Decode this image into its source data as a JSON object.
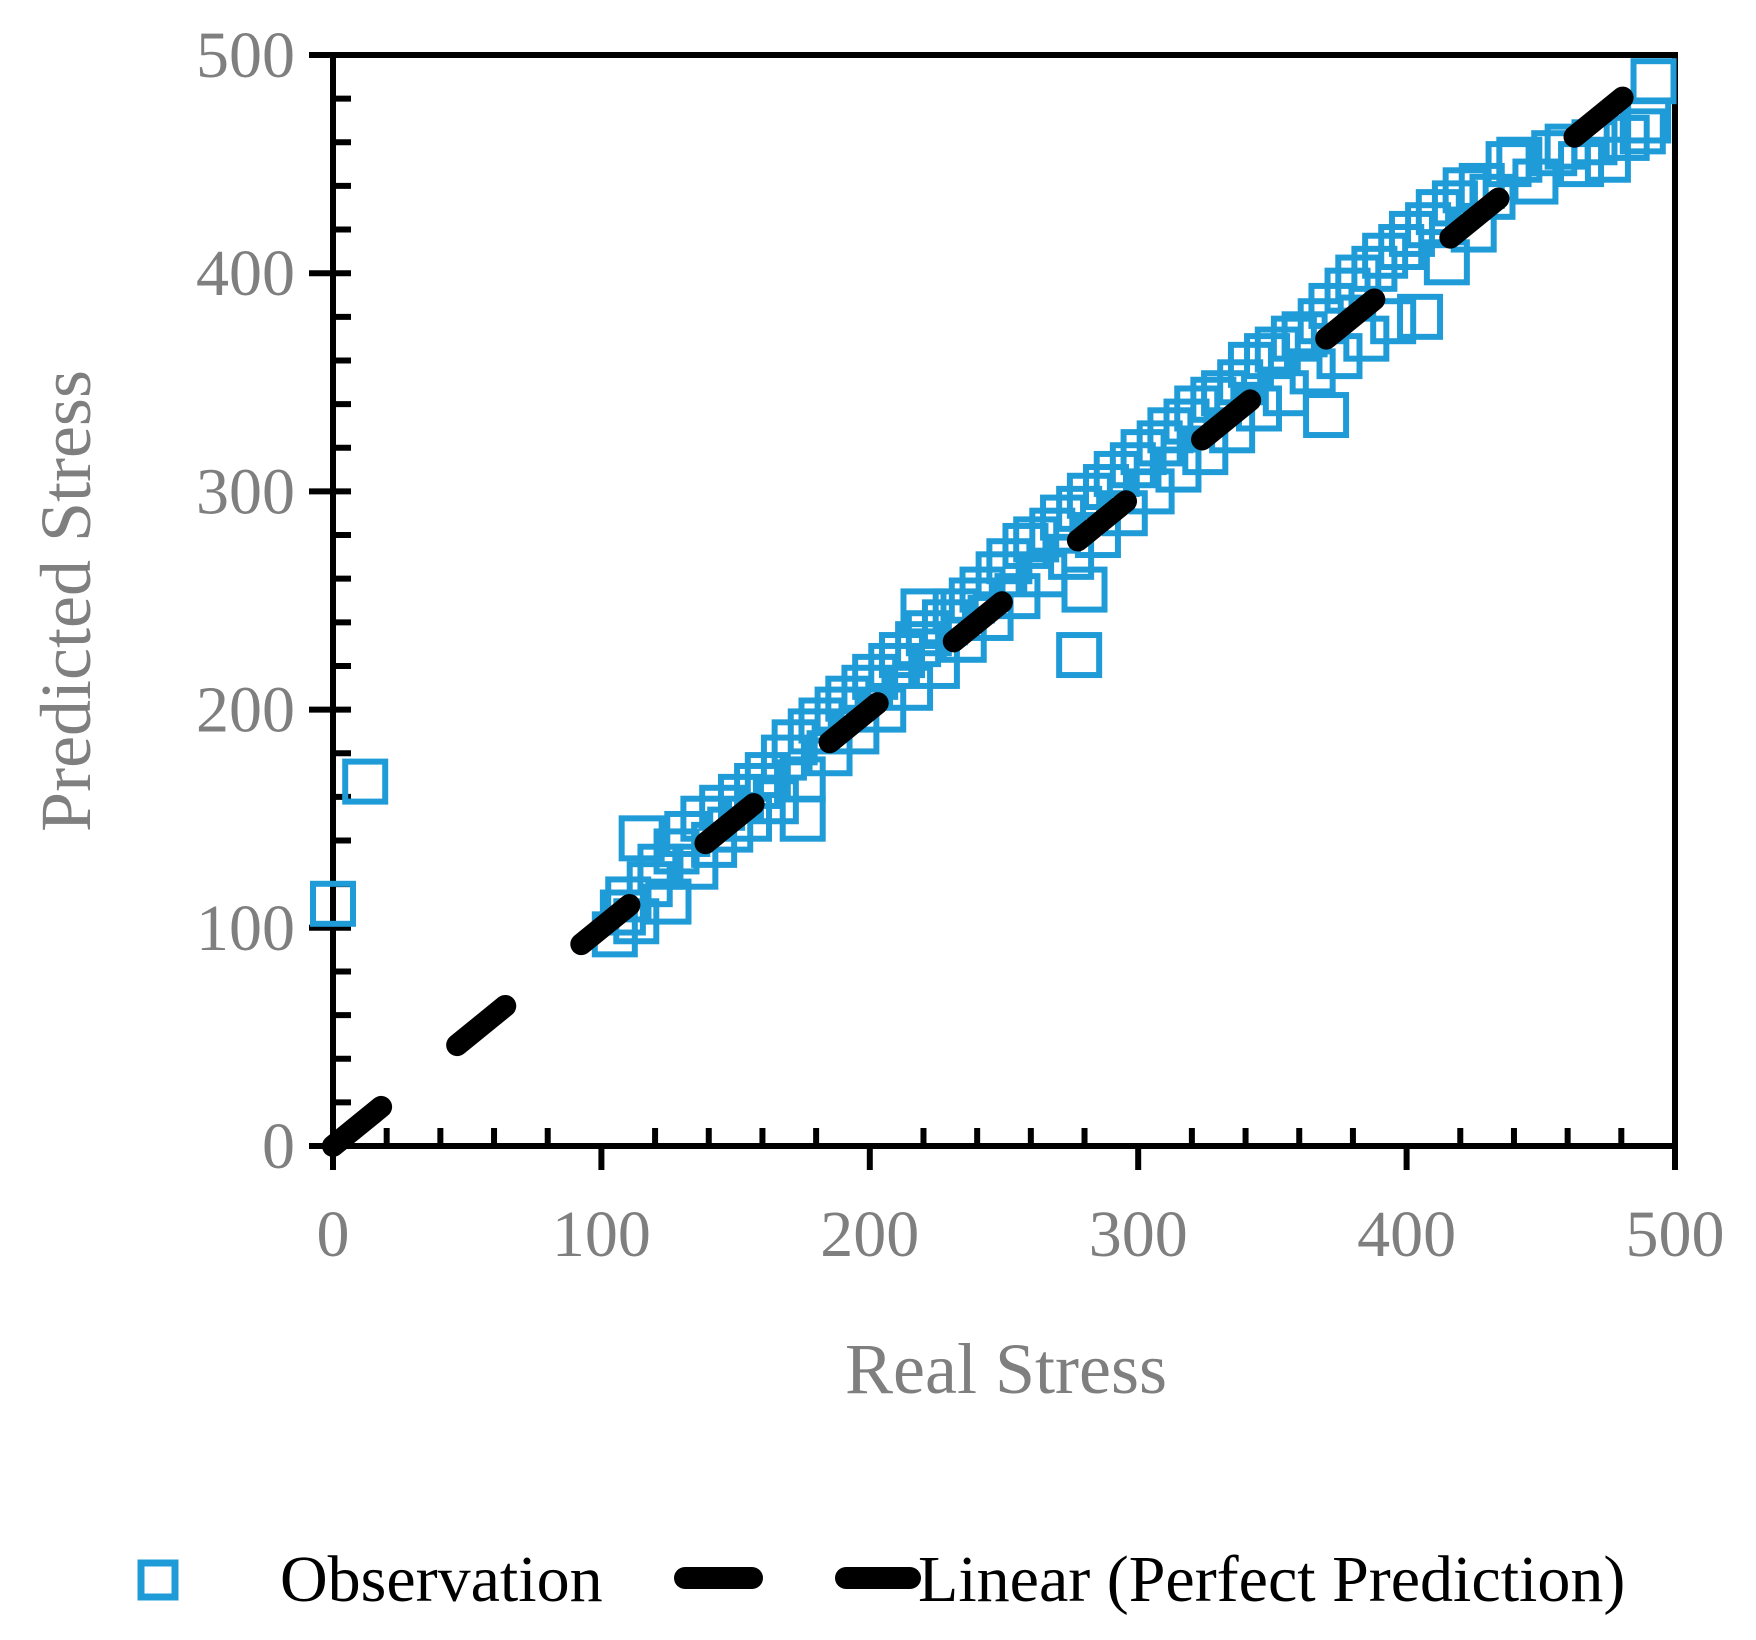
{
  "colors": {
    "observation": "#1f9cd8",
    "perfect_line": "#000000",
    "axis": "#000000",
    "text_gray": "#7f7f7f"
  },
  "chart_data": {
    "type": "scatter",
    "xlabel": "Real Stress",
    "ylabel": "Predicted Stress",
    "xlim": [
      0,
      500
    ],
    "ylim": [
      0,
      500
    ],
    "x_ticks": [
      0,
      100,
      200,
      300,
      400,
      500
    ],
    "y_ticks": [
      0,
      100,
      200,
      300,
      400,
      500
    ],
    "grid": false,
    "legend_position": "bottom",
    "series": [
      {
        "name": "Observation",
        "kind": "scatter",
        "marker": "hollow-square",
        "points": [
          [
            0,
            111
          ],
          [
            12,
            167
          ],
          [
            278,
            225
          ],
          [
            105,
            97
          ],
          [
            108,
            107
          ],
          [
            110,
            113
          ],
          [
            113,
            103
          ],
          [
            115,
            141
          ],
          [
            118,
            120
          ],
          [
            122,
            128
          ],
          [
            125,
            112
          ],
          [
            128,
            135
          ],
          [
            132,
            143
          ],
          [
            135,
            128
          ],
          [
            138,
            150
          ],
          [
            142,
            138
          ],
          [
            145,
            155
          ],
          [
            148,
            145
          ],
          [
            152,
            160
          ],
          [
            155,
            150
          ],
          [
            158,
            165
          ],
          [
            162,
            170
          ],
          [
            165,
            158
          ],
          [
            168,
            178
          ],
          [
            172,
            185
          ],
          [
            175,
            168
          ],
          [
            178,
            190
          ],
          [
            175,
            150
          ],
          [
            182,
            195
          ],
          [
            185,
            180
          ],
          [
            188,
            200
          ],
          [
            192,
            205
          ],
          [
            195,
            190
          ],
          [
            198,
            210
          ],
          [
            202,
            215
          ],
          [
            205,
            200
          ],
          [
            208,
            220
          ],
          [
            212,
            225
          ],
          [
            215,
            210
          ],
          [
            218,
            230
          ],
          [
            220,
            245
          ],
          [
            222,
            235
          ],
          [
            225,
            220
          ],
          [
            228,
            240
          ],
          [
            232,
            245
          ],
          [
            235,
            232
          ],
          [
            238,
            250
          ],
          [
            242,
            255
          ],
          [
            245,
            242
          ],
          [
            248,
            262
          ],
          [
            252,
            268
          ],
          [
            255,
            252
          ],
          [
            258,
            275
          ],
          [
            262,
            278
          ],
          [
            265,
            262
          ],
          [
            268,
            282
          ],
          [
            272,
            288
          ],
          [
            275,
            270
          ],
          [
            278,
            292
          ],
          [
            280,
            255
          ],
          [
            282,
            298
          ],
          [
            285,
            280
          ],
          [
            288,
            302
          ],
          [
            292,
            308
          ],
          [
            295,
            290
          ],
          [
            298,
            312
          ],
          [
            302,
            318
          ],
          [
            305,
            300
          ],
          [
            308,
            322
          ],
          [
            312,
            328
          ],
          [
            315,
            310
          ],
          [
            318,
            332
          ],
          [
            322,
            338
          ],
          [
            325,
            318
          ],
          [
            328,
            342
          ],
          [
            332,
            345
          ],
          [
            335,
            328
          ],
          [
            338,
            350
          ],
          [
            342,
            358
          ],
          [
            345,
            338
          ],
          [
            348,
            362
          ],
          [
            352,
            365
          ],
          [
            355,
            345
          ],
          [
            358,
            370
          ],
          [
            362,
            372
          ],
          [
            365,
            355
          ],
          [
            368,
            378
          ],
          [
            370,
            335
          ],
          [
            372,
            385
          ],
          [
            375,
            362
          ],
          [
            378,
            392
          ],
          [
            382,
            398
          ],
          [
            385,
            370
          ],
          [
            388,
            402
          ],
          [
            392,
            408
          ],
          [
            395,
            378
          ],
          [
            398,
            412
          ],
          [
            402,
            418
          ],
          [
            405,
            380
          ],
          [
            408,
            422
          ],
          [
            412,
            428
          ],
          [
            415,
            405
          ],
          [
            418,
            432
          ],
          [
            422,
            438
          ],
          [
            425,
            420
          ],
          [
            428,
            440
          ],
          [
            432,
            435
          ],
          [
            438,
            450
          ],
          [
            442,
            452
          ],
          [
            448,
            442
          ],
          [
            455,
            455
          ],
          [
            460,
            458
          ],
          [
            465,
            450
          ],
          [
            470,
            460
          ],
          [
            475,
            452
          ],
          [
            482,
            462
          ],
          [
            488,
            465
          ],
          [
            490,
            470
          ],
          [
            492,
            488
          ]
        ]
      },
      {
        "name": "Linear (Perfect Prediction)",
        "kind": "line",
        "style": "dashed",
        "points": [
          [
            0,
            0
          ],
          [
            500,
            500
          ]
        ]
      }
    ]
  }
}
